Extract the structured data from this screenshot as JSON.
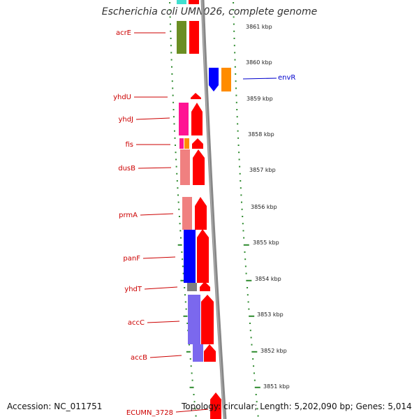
{
  "title": "Escherichia coli UMN026, complete genome",
  "footer": {
    "accession": "Accession: NC_011751",
    "summary": "Topology: circular; Length: 5,202,090 bp; Genes: 5,014"
  },
  "genes_left": [
    {
      "name": "acrE"
    },
    {
      "name": "yhdU"
    },
    {
      "name": "yhdJ"
    },
    {
      "name": "fis"
    },
    {
      "name": "dusB"
    },
    {
      "name": "prmA"
    },
    {
      "name": "panF"
    },
    {
      "name": "yhdT"
    },
    {
      "name": "accC"
    },
    {
      "name": "accB"
    },
    {
      "name": "ECUMN_3728"
    }
  ],
  "genes_right": [
    {
      "name": "envR"
    }
  ],
  "ticks": [
    {
      "label": "3861 kbp"
    },
    {
      "label": "3860 kbp"
    },
    {
      "label": "3859 kbp"
    },
    {
      "label": "3858 kbp"
    },
    {
      "label": "3857 kbp"
    },
    {
      "label": "3856 kbp"
    },
    {
      "label": "3855 kbp"
    },
    {
      "label": "3854 kbp"
    },
    {
      "label": "3853 kbp"
    },
    {
      "label": "3852 kbp"
    },
    {
      "label": "3851 kbp"
    }
  ],
  "colors": {
    "cds_forward": "#ff0000",
    "backbone": "#888888",
    "tick_marks": "#2e8b2e",
    "label_red": "#cc0000",
    "label_blue": "#0000cc",
    "cog_olive": "#6b8e23",
    "cog_magenta": "#ff1493",
    "cog_orange": "#ff8c00",
    "cog_salmon": "#f08080",
    "cog_blue": "#0000ff",
    "cog_lavender": "#7b68ee",
    "cog_gray": "#808080"
  }
}
